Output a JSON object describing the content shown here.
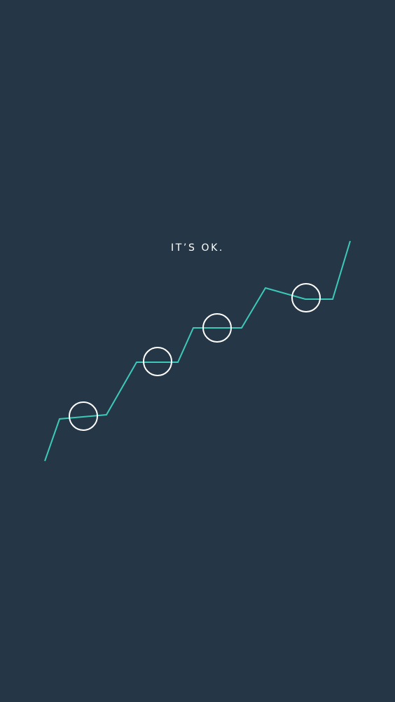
{
  "tagline": "IT’S OK.",
  "colors": {
    "background": "#253746",
    "line": "#3cc9b9",
    "circle": "#ffffff",
    "text": "#ffffff"
  },
  "graphic": {
    "line_icon": "rising-zigzag-line",
    "circle_icon": "hollow-circle",
    "circle_count": 4
  }
}
